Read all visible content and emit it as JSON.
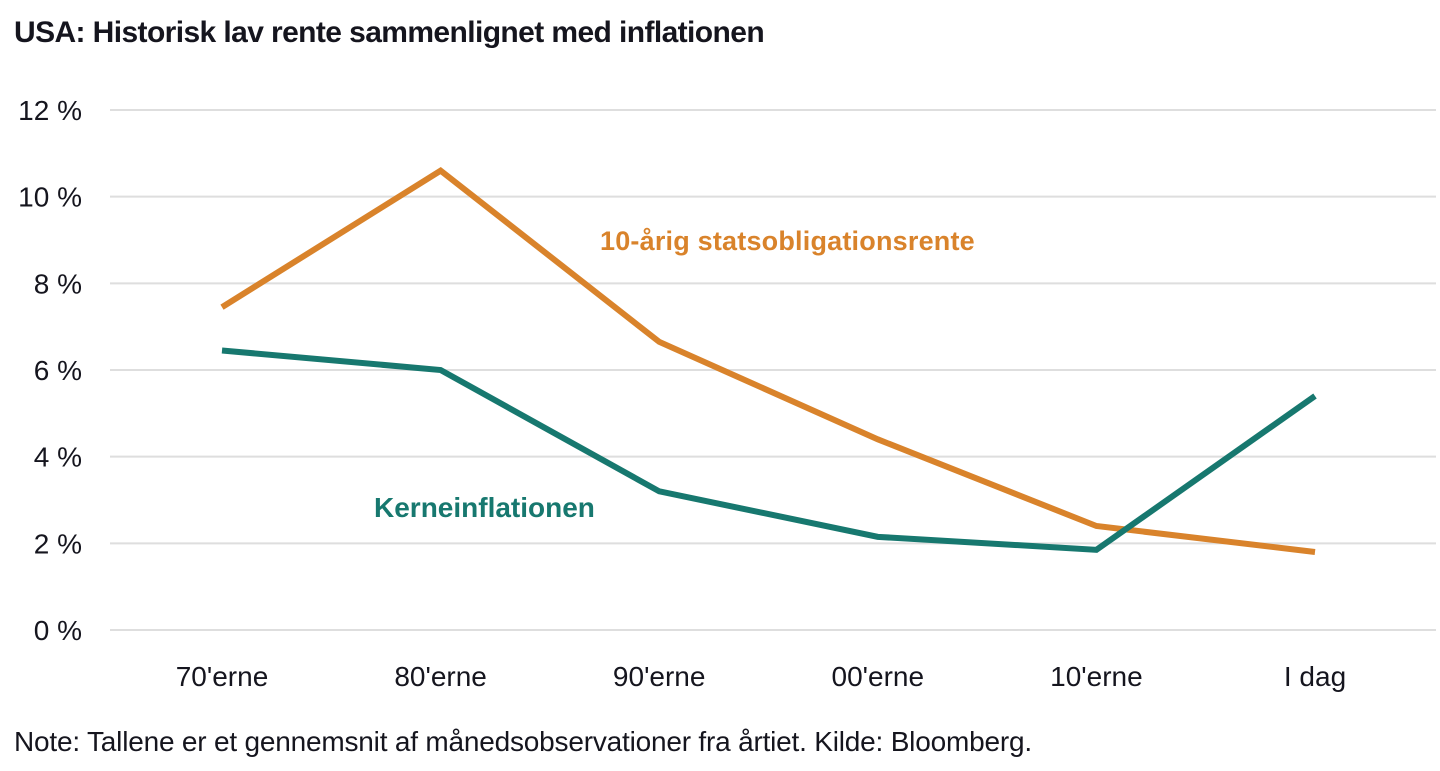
{
  "title": "USA: Historisk lav rente sammenlignet med inflationen",
  "note": "Note: Tallene er et gennemsnit af månedsobservationer fra årtiet. Kilde: Bloomberg.",
  "colors": {
    "bond_orange": "#D9832B",
    "inflation_teal": "#17786F",
    "grid": "#DEDEDE",
    "text": "#15151E"
  },
  "chart_data": {
    "type": "line",
    "title": "USA: Historisk lav rente sammenlignet med inflationen",
    "categories": [
      "70'erne",
      "80'erne",
      "90'erne",
      "00'erne",
      "10'erne",
      "I dag"
    ],
    "series": [
      {
        "name": "10-årig statsobligationsrente",
        "color_key": "bond_orange",
        "values": [
          7.45,
          10.6,
          6.65,
          4.4,
          2.4,
          1.8
        ]
      },
      {
        "name": "Kerneinflationen",
        "color_key": "inflation_teal",
        "values": [
          6.45,
          6.0,
          3.2,
          2.15,
          1.85,
          5.4
        ]
      }
    ],
    "xlabel": "",
    "ylabel": "",
    "unit": "%",
    "ylim": [
      0,
      12
    ],
    "ytick_step": 2,
    "ytick_labels": [
      "0 %",
      "2 %",
      "4 %",
      "6 %",
      "8 %",
      "10 %",
      "12 %"
    ],
    "grid": true,
    "legend_position": "inline-labels"
  }
}
